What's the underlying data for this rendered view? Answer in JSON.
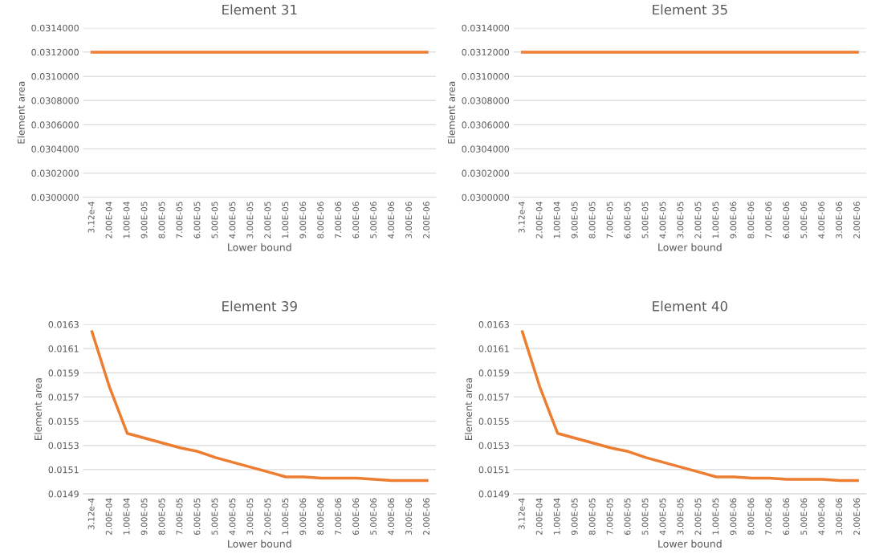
{
  "chart_data": [
    {
      "type": "line",
      "title": "Element 31",
      "xlabel": "Lower bound",
      "ylabel": "Element area",
      "grid": "y",
      "marker": "none",
      "line_style": "solid",
      "categories": [
        "3.12e-4",
        "2.00E-04",
        "1.00E-04",
        "9.00E-05",
        "8.00E-05",
        "7.00E-05",
        "6.00E-05",
        "5.00E-05",
        "4.00E-05",
        "3.00E-05",
        "2.00E-05",
        "1.00E-05",
        "9.00E-06",
        "8.00E-06",
        "7.00E-06",
        "6.00E-06",
        "5.00E-06",
        "4.00E-06",
        "3.00E-06",
        "2.00E-06"
      ],
      "series": [
        {
          "color": "#ed7d31",
          "values": [
            0.0312,
            0.0312,
            0.0312,
            0.0312,
            0.0312,
            0.0312,
            0.0312,
            0.0312,
            0.0312,
            0.0312,
            0.0312,
            0.0312,
            0.0312,
            0.0312,
            0.0312,
            0.0312,
            0.0312,
            0.0312,
            0.0312,
            0.0312
          ]
        }
      ],
      "ylim": [
        0.03,
        0.0314
      ],
      "yticks": [
        {
          "value": 0.03,
          "label": "0.0300000"
        },
        {
          "value": 0.0302,
          "label": "0.0302000"
        },
        {
          "value": 0.0304,
          "label": "0.0304000"
        },
        {
          "value": 0.0306,
          "label": "0.0306000"
        },
        {
          "value": 0.0308,
          "label": "0.0308000"
        },
        {
          "value": 0.031,
          "label": "0.0310000"
        },
        {
          "value": 0.0312,
          "label": "0.0312000"
        },
        {
          "value": 0.0314,
          "label": "0.0314000"
        }
      ]
    },
    {
      "type": "line",
      "title": "Element 35",
      "xlabel": "Lower bound",
      "ylabel": "Element area",
      "grid": "y",
      "marker": "none",
      "line_style": "solid",
      "categories": [
        "3.12e-4",
        "2.00E-04",
        "1.00E-04",
        "9.00E-05",
        "8.00E-05",
        "7.00E-05",
        "6.00E-05",
        "5.00E-05",
        "4.00E-05",
        "3.00E-05",
        "2.00E-05",
        "1.00E-05",
        "9.00E-06",
        "8.00E-06",
        "7.00E-06",
        "6.00E-06",
        "5.00E-06",
        "4.00E-06",
        "3.00E-06",
        "2.00E-06"
      ],
      "series": [
        {
          "color": "#ed7d31",
          "values": [
            0.0312,
            0.0312,
            0.0312,
            0.0312,
            0.0312,
            0.0312,
            0.0312,
            0.0312,
            0.0312,
            0.0312,
            0.0312,
            0.0312,
            0.0312,
            0.0312,
            0.0312,
            0.0312,
            0.0312,
            0.0312,
            0.0312,
            0.0312
          ]
        }
      ],
      "ylim": [
        0.03,
        0.0314
      ],
      "yticks": [
        {
          "value": 0.03,
          "label": "0.0300000"
        },
        {
          "value": 0.0302,
          "label": "0.0302000"
        },
        {
          "value": 0.0304,
          "label": "0.0304000"
        },
        {
          "value": 0.0306,
          "label": "0.0306000"
        },
        {
          "value": 0.0308,
          "label": "0.0308000"
        },
        {
          "value": 0.031,
          "label": "0.0310000"
        },
        {
          "value": 0.0312,
          "label": "0.0312000"
        },
        {
          "value": 0.0314,
          "label": "0.0314000"
        }
      ]
    },
    {
      "type": "line",
      "title": "Element 39",
      "xlabel": "Lower bound",
      "ylabel": "Element area",
      "grid": "y",
      "marker": "none",
      "line_style": "solid",
      "categories": [
        "3.12e-4",
        "2.00E-04",
        "1.00E-04",
        "9.00E-05",
        "8.00E-05",
        "7.00E-05",
        "6.00E-05",
        "5.00E-05",
        "4.00E-05",
        "3.00E-05",
        "2.00E-05",
        "1.00E-05",
        "9.00E-06",
        "8.00E-06",
        "7.00E-06",
        "6.00E-06",
        "5.00E-06",
        "4.00E-06",
        "3.00E-06",
        "2.00E-06"
      ],
      "series": [
        {
          "color": "#ed7d31",
          "values": [
            0.01624,
            0.01578,
            0.0154,
            0.01536,
            0.01532,
            0.01528,
            0.01525,
            0.0152,
            0.01516,
            0.01512,
            0.01508,
            0.01504,
            0.01504,
            0.01503,
            0.01503,
            0.01503,
            0.01502,
            0.01501,
            0.01501,
            0.01501
          ]
        }
      ],
      "ylim": [
        0.0149,
        0.0163
      ],
      "yticks": [
        {
          "value": 0.0149,
          "label": "0.0149"
        },
        {
          "value": 0.0151,
          "label": "0.0151"
        },
        {
          "value": 0.0153,
          "label": "0.0153"
        },
        {
          "value": 0.0155,
          "label": "0.0155"
        },
        {
          "value": 0.0157,
          "label": "0.0157"
        },
        {
          "value": 0.0159,
          "label": "0.0159"
        },
        {
          "value": 0.0161,
          "label": "0.0161"
        },
        {
          "value": 0.0163,
          "label": "0.0163"
        }
      ]
    },
    {
      "type": "line",
      "title": "Element 40",
      "xlabel": "Lower bound",
      "ylabel": "Element area",
      "grid": "y",
      "marker": "none",
      "line_style": "solid",
      "categories": [
        "3.12e-4",
        "2.00E-04",
        "1.00E-04",
        "9.00E-05",
        "8.00E-05",
        "7.00E-05",
        "6.00E-05",
        "5.00E-05",
        "4.00E-05",
        "3.00E-05",
        "2.00E-05",
        "1.00E-05",
        "9.00E-06",
        "8.00E-06",
        "7.00E-06",
        "6.00E-06",
        "5.00E-06",
        "4.00E-06",
        "3.00E-06",
        "2.00E-06"
      ],
      "series": [
        {
          "color": "#ed7d31",
          "values": [
            0.01624,
            0.01578,
            0.0154,
            0.01536,
            0.01532,
            0.01528,
            0.01525,
            0.0152,
            0.01516,
            0.01512,
            0.01508,
            0.01504,
            0.01504,
            0.01503,
            0.01503,
            0.01502,
            0.01502,
            0.01502,
            0.01501,
            0.01501
          ]
        }
      ],
      "ylim": [
        0.0149,
        0.0163
      ],
      "yticks": [
        {
          "value": 0.0149,
          "label": "0.0149"
        },
        {
          "value": 0.0151,
          "label": "0.0151"
        },
        {
          "value": 0.0153,
          "label": "0.0153"
        },
        {
          "value": 0.0155,
          "label": "0.0155"
        },
        {
          "value": 0.0157,
          "label": "0.0157"
        },
        {
          "value": 0.0159,
          "label": "0.0159"
        },
        {
          "value": 0.0161,
          "label": "0.0161"
        },
        {
          "value": 0.0163,
          "label": "0.0163"
        }
      ]
    }
  ]
}
